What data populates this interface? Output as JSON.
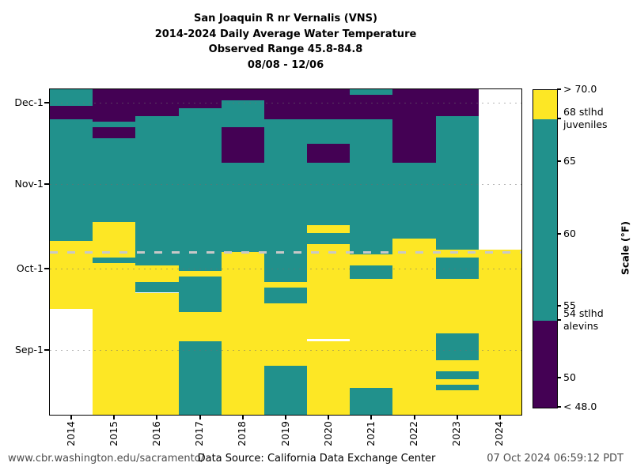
{
  "title": {
    "line1": "San Joaquin R nr Vernalis (VNS)",
    "line2": "2014-2024 Daily Average Water Temperature",
    "line3": "Observed Range 45.8-84.8",
    "line4": "08/08 - 12/06"
  },
  "footer": {
    "url": "www.cbr.washington.edu/sacramento/",
    "source": "Data Source: California Data Exchange Center",
    "timestamp": "07 Oct 2024 06:59:12 PDT"
  },
  "colors": {
    "above": "#fde725",
    "mid": "#21918c",
    "below": "#440154",
    "nodata": "#ffffff",
    "dash_marker": "#c8c8c8",
    "frame": "#000000"
  },
  "chart_data": {
    "type": "heatmap",
    "title": "San Joaquin R nr Vernalis (VNS) 2014-2024 Daily Average Water Temperature",
    "xlabel": "",
    "ylabel": "",
    "x_categories": [
      "2014",
      "2015",
      "2016",
      "2017",
      "2018",
      "2019",
      "2020",
      "2021",
      "2022",
      "2023",
      "2024"
    ],
    "y_axis": {
      "top_date": "12-06",
      "bottom_date": "08-08",
      "total_days": 120
    },
    "y_ticks": [
      {
        "label": "Dec-1",
        "date": "12-01"
      },
      {
        "label": "Nov-1",
        "date": "11-01"
      },
      {
        "label": "Oct-1",
        "date": "10-01"
      },
      {
        "label": "Sep-1",
        "date": "09-01"
      }
    ],
    "grid": "dotted horizontal at month starts",
    "legend_position": "right colorbar",
    "value_classes": {
      "above": "> 68 F (yellow)",
      "mid": "54-68 F (teal)",
      "below": "< 54 F (purple)",
      "nodata": "no data (white)"
    },
    "dashed_marker_date": "10-07",
    "columns": [
      {
        "year": "2014",
        "segments": [
          {
            "c": "mid",
            "t": "12-06",
            "b": "11-30"
          },
          {
            "c": "below",
            "t": "11-30",
            "b": "11-25"
          },
          {
            "c": "mid",
            "t": "11-25",
            "b": "10-11"
          },
          {
            "c": "above",
            "t": "10-11",
            "b": "09-16"
          },
          {
            "c": "nodata",
            "t": "09-16",
            "b": "08-08"
          }
        ]
      },
      {
        "year": "2015",
        "segments": [
          {
            "c": "below",
            "t": "12-06",
            "b": "11-24"
          },
          {
            "c": "mid",
            "t": "11-24",
            "b": "11-22"
          },
          {
            "c": "below",
            "t": "11-22",
            "b": "11-18"
          },
          {
            "c": "mid",
            "t": "11-18",
            "b": "10-18"
          },
          {
            "c": "above",
            "t": "10-18",
            "b": "10-05"
          },
          {
            "c": "mid",
            "t": "10-05",
            "b": "10-03"
          },
          {
            "c": "above",
            "t": "10-03",
            "b": "08-08"
          }
        ]
      },
      {
        "year": "2016",
        "segments": [
          {
            "c": "below",
            "t": "12-06",
            "b": "11-26"
          },
          {
            "c": "mid",
            "t": "11-26",
            "b": "10-02"
          },
          {
            "c": "above",
            "t": "10-02",
            "b": "09-26"
          },
          {
            "c": "mid",
            "t": "09-26",
            "b": "09-22"
          },
          {
            "c": "above",
            "t": "09-22",
            "b": "08-08"
          }
        ]
      },
      {
        "year": "2017",
        "segments": [
          {
            "c": "below",
            "t": "12-06",
            "b": "11-29"
          },
          {
            "c": "mid",
            "t": "11-29",
            "b": "09-30"
          },
          {
            "c": "above",
            "t": "09-30",
            "b": "09-28"
          },
          {
            "c": "mid",
            "t": "09-28",
            "b": "09-15"
          },
          {
            "c": "above",
            "t": "09-15",
            "b": "09-04"
          },
          {
            "c": "mid",
            "t": "09-04",
            "b": "08-08"
          }
        ]
      },
      {
        "year": "2018",
        "segments": [
          {
            "c": "below",
            "t": "12-06",
            "b": "12-02"
          },
          {
            "c": "mid",
            "t": "12-02",
            "b": "11-22"
          },
          {
            "c": "below",
            "t": "11-22",
            "b": "11-09"
          },
          {
            "c": "mid",
            "t": "11-09",
            "b": "10-07"
          },
          {
            "c": "above",
            "t": "10-07",
            "b": "08-08"
          }
        ]
      },
      {
        "year": "2019",
        "segments": [
          {
            "c": "below",
            "t": "12-06",
            "b": "11-25"
          },
          {
            "c": "mid",
            "t": "11-25",
            "b": "09-26"
          },
          {
            "c": "above",
            "t": "09-26",
            "b": "09-24"
          },
          {
            "c": "mid",
            "t": "09-24",
            "b": "09-18"
          },
          {
            "c": "above",
            "t": "09-18",
            "b": "08-26"
          },
          {
            "c": "mid",
            "t": "08-26",
            "b": "08-08"
          }
        ]
      },
      {
        "year": "2020",
        "segments": [
          {
            "c": "below",
            "t": "12-06",
            "b": "11-25"
          },
          {
            "c": "mid",
            "t": "11-25",
            "b": "11-16"
          },
          {
            "c": "below",
            "t": "11-16",
            "b": "11-09"
          },
          {
            "c": "mid",
            "t": "11-09",
            "b": "10-17"
          },
          {
            "c": "above",
            "t": "10-17",
            "b": "10-14"
          },
          {
            "c": "mid",
            "t": "10-14",
            "b": "10-10"
          },
          {
            "c": "above",
            "t": "10-10",
            "b": "09-05"
          },
          {
            "c": "nodata",
            "t": "09-05",
            "b": "09-04"
          },
          {
            "c": "above",
            "t": "09-04",
            "b": "08-08"
          }
        ]
      },
      {
        "year": "2021",
        "segments": [
          {
            "c": "mid",
            "t": "12-06",
            "b": "12-04"
          },
          {
            "c": "below",
            "t": "12-04",
            "b": "11-25"
          },
          {
            "c": "mid",
            "t": "11-25",
            "b": "10-06"
          },
          {
            "c": "above",
            "t": "10-06",
            "b": "10-02"
          },
          {
            "c": "mid",
            "t": "10-02",
            "b": "09-27"
          },
          {
            "c": "above",
            "t": "09-27",
            "b": "08-18"
          },
          {
            "c": "mid",
            "t": "08-18",
            "b": "08-08"
          }
        ]
      },
      {
        "year": "2022",
        "segments": [
          {
            "c": "below",
            "t": "12-06",
            "b": "11-09"
          },
          {
            "c": "mid",
            "t": "11-09",
            "b": "10-12"
          },
          {
            "c": "above",
            "t": "10-12",
            "b": "08-08"
          }
        ]
      },
      {
        "year": "2023",
        "segments": [
          {
            "c": "below",
            "t": "12-06",
            "b": "11-26"
          },
          {
            "c": "mid",
            "t": "11-26",
            "b": "10-08"
          },
          {
            "c": "above",
            "t": "10-08",
            "b": "10-05"
          },
          {
            "c": "mid",
            "t": "10-05",
            "b": "09-27"
          },
          {
            "c": "above",
            "t": "09-27",
            "b": "09-07"
          },
          {
            "c": "mid",
            "t": "09-07",
            "b": "08-28"
          },
          {
            "c": "above",
            "t": "08-28",
            "b": "08-24"
          },
          {
            "c": "mid",
            "t": "08-24",
            "b": "08-21"
          },
          {
            "c": "above",
            "t": "08-21",
            "b": "08-19"
          },
          {
            "c": "mid",
            "t": "08-19",
            "b": "08-17"
          },
          {
            "c": "above",
            "t": "08-17",
            "b": "08-08"
          }
        ]
      },
      {
        "year": "2024",
        "segments": [
          {
            "c": "nodata",
            "t": "12-06",
            "b": "10-08"
          },
          {
            "c": "above",
            "t": "10-08",
            "b": "08-08"
          }
        ]
      }
    ]
  },
  "colorbar": {
    "title": "Scale (°F)",
    "vmax": 70,
    "vmin": 48,
    "band_boundaries": {
      "above_from": 68,
      "below_under": 54
    },
    "ticks": [
      {
        "v": 70,
        "lines": [
          "> 70.0"
        ]
      },
      {
        "v": 68,
        "lines": [
          "68 stlhd",
          "juveniles"
        ]
      },
      {
        "v": 65,
        "lines": [
          "65"
        ]
      },
      {
        "v": 60,
        "lines": [
          "60"
        ]
      },
      {
        "v": 55,
        "lines": [
          "55"
        ]
      },
      {
        "v": 54,
        "lines": [
          "54 stlhd",
          "alevins"
        ]
      },
      {
        "v": 50,
        "lines": [
          "50"
        ]
      },
      {
        "v": 48,
        "lines": [
          "< 48.0"
        ]
      }
    ]
  }
}
